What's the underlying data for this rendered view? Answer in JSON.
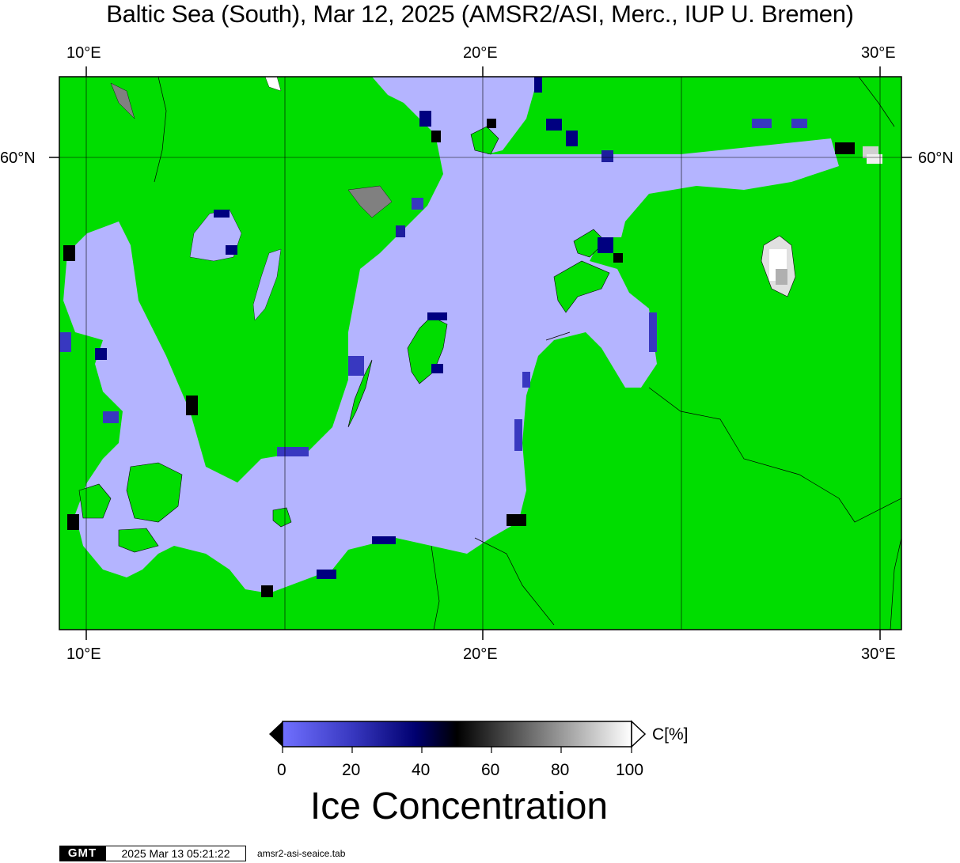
{
  "title": "Baltic Sea (South), Mar 12, 2025 (AMSR2/ASI, Merc., IUP U. Bremen)",
  "map": {
    "lon_ticks": [
      "10°E",
      "20°E",
      "30°E"
    ],
    "lat_ticks": [
      "60°N"
    ],
    "colors": {
      "land": "#00dd00",
      "open_water": "#b4b4ff",
      "ice_low": "#7070ff",
      "ice_mid": "#000080",
      "ice_high": "#ffffff",
      "no_data": "#808080",
      "border": "#000000"
    }
  },
  "colorbar": {
    "unit_label": "C[%]",
    "ticks": [
      "0",
      "20",
      "40",
      "60",
      "80",
      "100"
    ],
    "range": [
      0,
      100
    ],
    "title": "Ice Concentration"
  },
  "footer": {
    "logo": "GMT",
    "timestamp": "2025 Mar 13 05:21:22",
    "file": "amsr2-asi-seaice.tab"
  }
}
